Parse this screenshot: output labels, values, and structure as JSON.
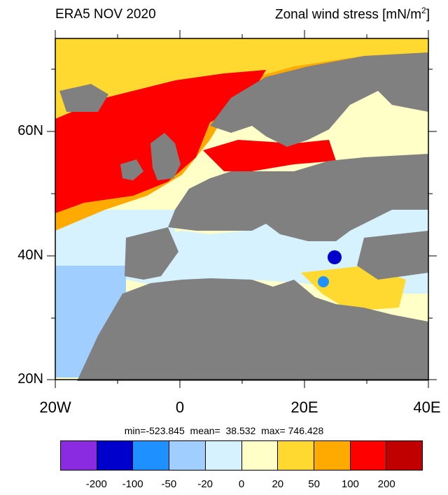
{
  "title_left": "ERA5 NOV 2020",
  "title_right_text": "Zonal wind stress [mN/m",
  "title_right_sup": "2",
  "title_right_close": "]",
  "lat_labels": [
    "60N",
    "40N",
    "20N"
  ],
  "lon_labels": [
    "20W",
    "0",
    "20E",
    "40E"
  ],
  "stats": "min=-523.845  mean=  38.532  max= 746.428",
  "colorbar": {
    "colors": [
      "#8a2be2",
      "#0000cd",
      "#1e90ff",
      "#a0cfff",
      "#d6f2ff",
      "#ffffc8",
      "#ffd92f",
      "#ffaa00",
      "#ff0000",
      "#c00000"
    ],
    "labels": [
      "-200",
      "-100",
      "-50",
      "-20",
      "0",
      "20",
      "50",
      "100",
      "200"
    ]
  },
  "colors": {
    "land": "#808080",
    "frame": "#000000"
  }
}
